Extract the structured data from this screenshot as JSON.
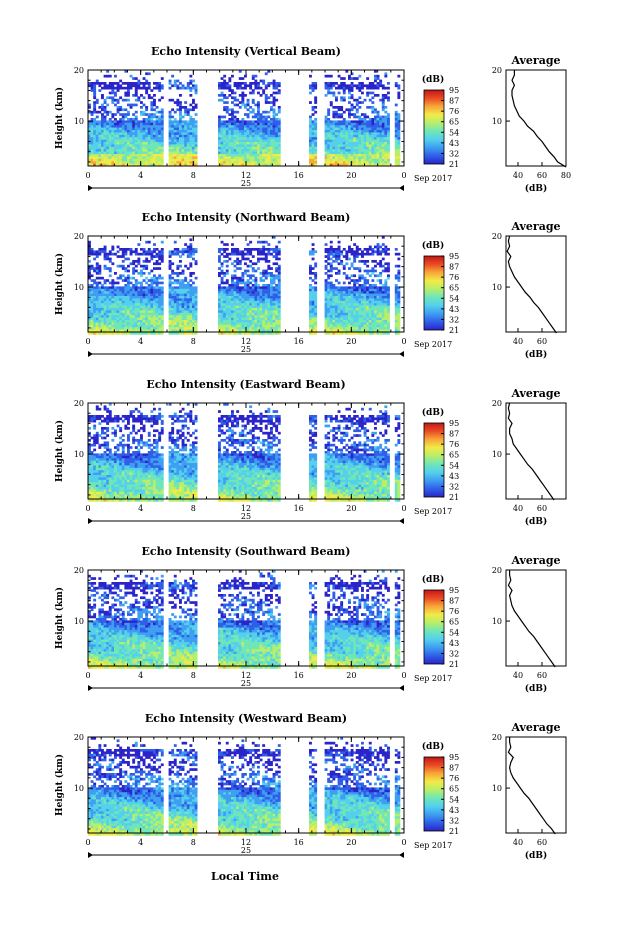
{
  "chart_data": [
    {
      "type": "heatmap",
      "title": "Echo Intensity (Vertical Beam)",
      "ylabel": "Height (km)",
      "yticks": [
        "20",
        "10"
      ],
      "xticks": [
        "0",
        "4",
        "8",
        "12",
        "16",
        "20",
        "0"
      ],
      "date_label": "25",
      "month_label": "Sep 2017",
      "colorbar_unit": "(dB)",
      "colorbar_ticks": [
        "95",
        "87",
        "76",
        "65",
        "54",
        "43",
        "32",
        "21"
      ],
      "average_title": "Average",
      "average_xlabel": "(dB)",
      "average_xticks": [
        "40",
        "60",
        "80"
      ],
      "average_yticks": [
        "20",
        "10"
      ],
      "profile": [
        [
          1,
          80
        ],
        [
          2,
          73
        ],
        [
          3,
          70
        ],
        [
          4,
          66
        ],
        [
          5,
          63
        ],
        [
          6,
          60
        ],
        [
          7,
          56
        ],
        [
          8,
          53
        ],
        [
          9,
          48
        ],
        [
          10,
          45
        ],
        [
          11,
          41
        ],
        [
          12,
          39
        ],
        [
          13,
          37
        ],
        [
          14,
          36
        ],
        [
          15,
          35
        ],
        [
          16,
          35
        ],
        [
          17,
          37
        ],
        [
          18,
          35
        ],
        [
          19,
          37
        ],
        [
          20,
          37
        ]
      ]
    },
    {
      "type": "heatmap",
      "title": "Echo Intensity (Northward Beam)",
      "ylabel": "Height (km)",
      "yticks": [
        "20",
        "10"
      ],
      "xticks": [
        "0",
        "4",
        "8",
        "12",
        "16",
        "20",
        "0"
      ],
      "date_label": "25",
      "month_label": "Sep 2017",
      "colorbar_unit": "(dB)",
      "colorbar_ticks": [
        "95",
        "87",
        "76",
        "65",
        "54",
        "43",
        "32",
        "21"
      ],
      "average_title": "Average",
      "average_xlabel": "(dB)",
      "average_xticks": [
        "40",
        "60"
      ],
      "average_yticks": [
        "20",
        "10"
      ],
      "profile": [
        [
          1,
          72
        ],
        [
          2,
          69
        ],
        [
          3,
          66
        ],
        [
          4,
          63
        ],
        [
          5,
          60
        ],
        [
          6,
          57
        ],
        [
          7,
          53
        ],
        [
          8,
          50
        ],
        [
          9,
          46
        ],
        [
          10,
          43
        ],
        [
          11,
          40
        ],
        [
          12,
          37
        ],
        [
          13,
          35
        ],
        [
          14,
          33
        ],
        [
          15,
          32
        ],
        [
          16,
          34
        ],
        [
          17,
          31
        ],
        [
          18,
          33
        ],
        [
          19,
          32
        ],
        [
          20,
          33
        ]
      ]
    },
    {
      "type": "heatmap",
      "title": "Echo Intensity (Eastward Beam)",
      "ylabel": "Height (km)",
      "yticks": [
        "20",
        "10"
      ],
      "xticks": [
        "0",
        "4",
        "8",
        "12",
        "16",
        "20",
        "0"
      ],
      "date_label": "25",
      "month_label": "Sep 2017",
      "colorbar_unit": "(dB)",
      "colorbar_ticks": [
        "95",
        "87",
        "76",
        "65",
        "54",
        "43",
        "32",
        "21"
      ],
      "average_title": "Average",
      "average_xlabel": "(dB)",
      "average_xticks": [
        "40",
        "60"
      ],
      "average_yticks": [
        "20",
        "10"
      ],
      "profile": [
        [
          1,
          70
        ],
        [
          2,
          67
        ],
        [
          3,
          64
        ],
        [
          4,
          61
        ],
        [
          5,
          58
        ],
        [
          6,
          55
        ],
        [
          7,
          52
        ],
        [
          8,
          48
        ],
        [
          9,
          45
        ],
        [
          10,
          42
        ],
        [
          11,
          39
        ],
        [
          12,
          36
        ],
        [
          13,
          35
        ],
        [
          14,
          33
        ],
        [
          15,
          33
        ],
        [
          16,
          35
        ],
        [
          17,
          32
        ],
        [
          18,
          33
        ],
        [
          19,
          32
        ],
        [
          20,
          33
        ]
      ]
    },
    {
      "type": "heatmap",
      "title": "Echo Intensity (Southward Beam)",
      "ylabel": "Height (km)",
      "yticks": [
        "20",
        "10"
      ],
      "xticks": [
        "0",
        "4",
        "8",
        "12",
        "16",
        "20",
        "0"
      ],
      "date_label": "25",
      "month_label": "Sep 2017",
      "colorbar_unit": "(dB)",
      "colorbar_ticks": [
        "95",
        "87",
        "76",
        "65",
        "54",
        "43",
        "32",
        "21"
      ],
      "average_title": "Average",
      "average_xlabel": "(dB)",
      "average_xticks": [
        "40",
        "60"
      ],
      "average_yticks": [
        "20",
        "10"
      ],
      "profile": [
        [
          1,
          71
        ],
        [
          2,
          68
        ],
        [
          3,
          65
        ],
        [
          4,
          62
        ],
        [
          5,
          59
        ],
        [
          6,
          56
        ],
        [
          7,
          53
        ],
        [
          8,
          49
        ],
        [
          9,
          46
        ],
        [
          10,
          43
        ],
        [
          11,
          40
        ],
        [
          12,
          37
        ],
        [
          13,
          35
        ],
        [
          14,
          34
        ],
        [
          15,
          33
        ],
        [
          16,
          35
        ],
        [
          17,
          32
        ],
        [
          18,
          34
        ],
        [
          19,
          33
        ],
        [
          20,
          33
        ]
      ]
    },
    {
      "type": "heatmap",
      "title": "Echo Intensity (Westward Beam)",
      "ylabel": "Height (km)",
      "yticks": [
        "20",
        "10"
      ],
      "xticks": [
        "0",
        "4",
        "8",
        "12",
        "16",
        "20",
        "0"
      ],
      "date_label": "25",
      "month_label": "Sep 2017",
      "colorbar_unit": "(dB)",
      "colorbar_ticks": [
        "95",
        "87",
        "76",
        "65",
        "54",
        "43",
        "32",
        "21"
      ],
      "average_title": "Average",
      "average_xlabel": "(dB)",
      "average_xticks": [
        "40",
        "60"
      ],
      "average_yticks": [
        "20",
        "10"
      ],
      "profile": [
        [
          1,
          71
        ],
        [
          2,
          68
        ],
        [
          3,
          64
        ],
        [
          4,
          61
        ],
        [
          5,
          58
        ],
        [
          6,
          55
        ],
        [
          7,
          52
        ],
        [
          8,
          49
        ],
        [
          9,
          45
        ],
        [
          10,
          42
        ],
        [
          11,
          39
        ],
        [
          12,
          36
        ],
        [
          13,
          34
        ],
        [
          14,
          33
        ],
        [
          15,
          34
        ],
        [
          16,
          36
        ],
        [
          17,
          32
        ],
        [
          18,
          34
        ],
        [
          19,
          33
        ],
        [
          20,
          33
        ]
      ]
    }
  ],
  "xlabel": "Local Time",
  "colorscale": [
    "#2b24c8",
    "#2f5fe8",
    "#3e9ef2",
    "#54d0ec",
    "#6fe6b8",
    "#b8ee6a",
    "#f2ea48",
    "#f7a838",
    "#ea4a24",
    "#c21818"
  ]
}
